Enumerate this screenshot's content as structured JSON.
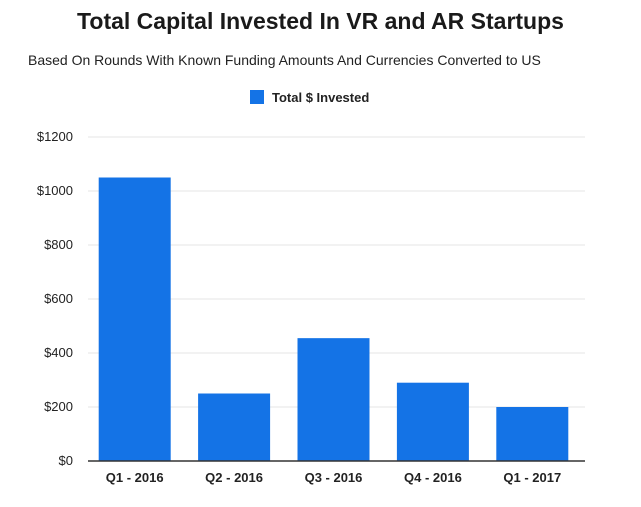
{
  "colors": {
    "bar": "#1473e6",
    "grid": "#e6e6e6",
    "axis": "#333333"
  },
  "chart_data": {
    "type": "bar",
    "title": "Total Capital Invested In VR and AR Startups",
    "subtitle": "Based On Rounds With Known Funding Amounts And Currencies Converted to US",
    "xlabel": "",
    "ylabel": "",
    "legend": "top-center",
    "grid": true,
    "ylim": [
      0,
      1200
    ],
    "yticks": [
      0,
      200,
      400,
      600,
      800,
      1000,
      1200
    ],
    "ytick_labels": [
      "$0",
      "$200",
      "$400",
      "$600",
      "$800",
      "$1000",
      "$1200"
    ],
    "categories": [
      "Q1 - 2016",
      "Q2 - 2016",
      "Q3 - 2016",
      "Q4 - 2016",
      "Q1 - 2017"
    ],
    "series": [
      {
        "name": "Total $ Invested",
        "values": [
          1050,
          250,
          455,
          290,
          200
        ]
      }
    ]
  }
}
